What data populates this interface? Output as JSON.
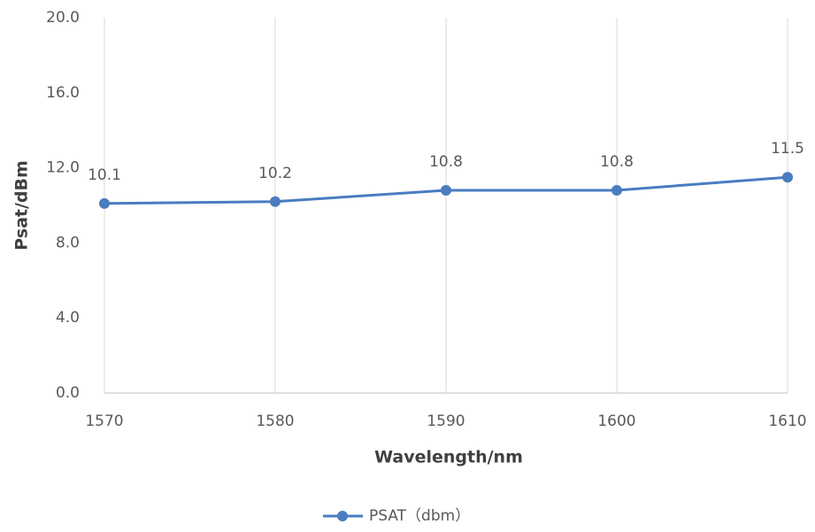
{
  "chart_data": {
    "type": "line",
    "x": [
      1570,
      1580,
      1590,
      1600,
      1610
    ],
    "series": [
      {
        "name": "PSAT（dbm）",
        "color": "#4a7cc0",
        "values": [
          10.1,
          10.2,
          10.8,
          10.8,
          11.5
        ]
      }
    ],
    "xlabel": "Wavelength/nm",
    "ylabel": "Psat/dBm",
    "xlim": [
      1570,
      1610
    ],
    "xticks": [
      1570,
      1580,
      1590,
      1600,
      1610
    ],
    "ylim": [
      0,
      20
    ],
    "yticks": [
      {
        "value": 0,
        "label": "0.0"
      },
      {
        "value": 4,
        "label": "4.0"
      },
      {
        "value": 8,
        "label": "8.0"
      },
      {
        "value": 12,
        "label": "12.0"
      },
      {
        "value": 16,
        "label": "16.0"
      },
      {
        "value": 20,
        "label": "20.0"
      }
    ],
    "grid": "x",
    "legend": "bottom",
    "data_labels": true
  }
}
